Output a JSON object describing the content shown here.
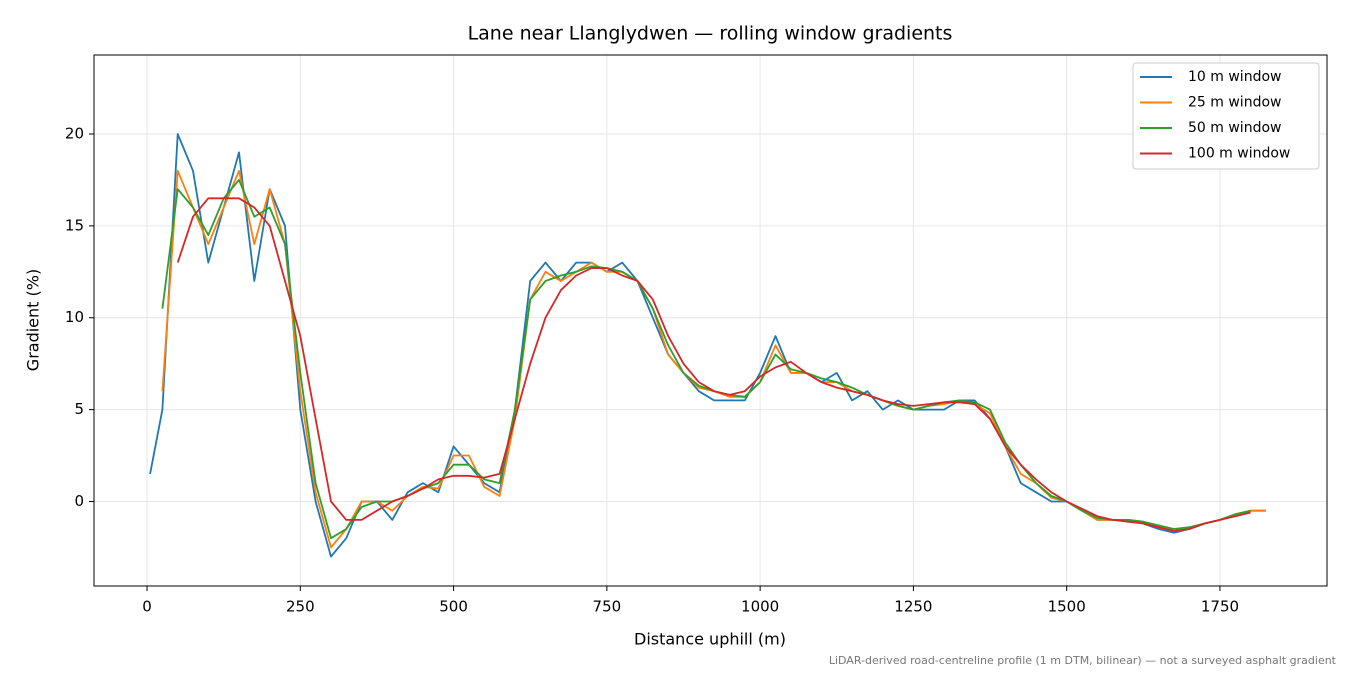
{
  "chart_data": {
    "type": "line",
    "title": "Lane near Llanglydwen — rolling window gradients",
    "x_label": "Distance uphill (m)",
    "y_label": "Gradient (%)",
    "footnote": "LiDAR-derived road-centreline profile (1 m DTM, bilinear) — not a surveyed asphalt gradient",
    "x": [
      5,
      25,
      50,
      75,
      100,
      125,
      150,
      175,
      200,
      225,
      250,
      275,
      300,
      325,
      350,
      375,
      400,
      425,
      450,
      475,
      500,
      525,
      550,
      575,
      600,
      625,
      650,
      675,
      700,
      725,
      750,
      775,
      800,
      825,
      850,
      875,
      900,
      925,
      950,
      975,
      1000,
      1025,
      1050,
      1075,
      1100,
      1125,
      1150,
      1175,
      1200,
      1225,
      1250,
      1275,
      1300,
      1325,
      1350,
      1375,
      1400,
      1425,
      1450,
      1475,
      1500,
      1525,
      1550,
      1575,
      1600,
      1625,
      1650,
      1675,
      1700,
      1725,
      1750,
      1775,
      1800,
      1825
    ],
    "series": [
      {
        "name": "10 m window",
        "color": "#1f77b4",
        "values": [
          1.5,
          5,
          20,
          18,
          13,
          16,
          19,
          12,
          17,
          15,
          5,
          0,
          -3,
          -2,
          0,
          0,
          -1,
          0.5,
          1,
          0.5,
          3,
          2,
          1,
          0.5,
          5,
          12,
          13,
          12,
          13,
          13,
          12.5,
          13,
          12,
          10,
          8,
          7,
          6,
          5.5,
          5.5,
          5.5,
          7,
          9,
          7,
          7,
          6.5,
          7,
          5.5,
          6,
          5,
          5.5,
          5,
          5,
          5,
          5.5,
          5.5,
          4.5,
          3,
          1,
          0.5,
          0,
          0,
          -0.5,
          -1,
          -1,
          -1,
          -1.2,
          -1.5,
          -1.7,
          -1.5,
          -1.2,
          -1,
          -0.7,
          -0.5,
          -0.5
        ]
      },
      {
        "name": "25 m window",
        "color": "#ff7f0e",
        "values": [
          null,
          6,
          18,
          16,
          14,
          16,
          18,
          14,
          17,
          14,
          6,
          0.5,
          -2.5,
          -1.5,
          0,
          0,
          -0.5,
          0.3,
          0.8,
          0.7,
          2.5,
          2.5,
          0.8,
          0.3,
          4.5,
          11,
          12.5,
          12,
          12.5,
          13,
          12.5,
          12.5,
          12,
          10.5,
          8,
          7,
          6.2,
          6,
          5.7,
          5.7,
          6.5,
          8.5,
          7,
          7,
          6.5,
          6.5,
          6,
          5.8,
          5.5,
          5.2,
          5,
          5.2,
          5.3,
          5.5,
          5.3,
          4.8,
          3,
          1.5,
          1,
          0.2,
          0,
          -0.5,
          -1,
          -1,
          -1,
          -1.1,
          -1.4,
          -1.6,
          -1.5,
          -1.2,
          -1,
          -0.7,
          -0.5,
          -0.5
        ]
      },
      {
        "name": "50 m window",
        "color": "#2ca02c",
        "values": [
          null,
          10.5,
          17,
          16,
          14.5,
          16.5,
          17.5,
          15.5,
          16,
          14,
          7,
          1,
          -2,
          -1.5,
          -0.3,
          0,
          0,
          0.3,
          0.7,
          1,
          2,
          2,
          1.2,
          1,
          5,
          11,
          12,
          12.3,
          12.5,
          12.8,
          12.7,
          12.5,
          12,
          10.5,
          8.5,
          7,
          6.3,
          6,
          5.8,
          5.7,
          6.5,
          8,
          7.2,
          7,
          6.7,
          6.5,
          6.2,
          5.8,
          5.5,
          5.2,
          5,
          5.2,
          5.4,
          5.5,
          5.4,
          5,
          3.2,
          2,
          1,
          0.3,
          0,
          -0.5,
          -0.9,
          -1,
          -1,
          -1.1,
          -1.3,
          -1.5,
          -1.4,
          -1.2,
          -1,
          -0.7,
          -0.5,
          null
        ]
      },
      {
        "name": "100 m window",
        "color": "#d62728",
        "values": [
          null,
          null,
          13,
          15.5,
          16.5,
          16.5,
          16.5,
          16,
          15,
          12,
          9,
          4.5,
          0,
          -1,
          -1,
          -0.5,
          0,
          0.3,
          0.7,
          1.2,
          1.4,
          1.4,
          1.3,
          1.5,
          4.5,
          7.5,
          10,
          11.5,
          12.3,
          12.7,
          12.7,
          12.3,
          12,
          11,
          9,
          7.5,
          6.5,
          6,
          5.8,
          6,
          6.8,
          7.3,
          7.6,
          7,
          6.5,
          6.2,
          6,
          5.8,
          5.5,
          5.3,
          5.2,
          5.3,
          5.4,
          5.4,
          5.3,
          4.5,
          3,
          2,
          1.2,
          0.5,
          0,
          -0.4,
          -0.8,
          -1,
          -1.1,
          -1.2,
          -1.4,
          -1.6,
          -1.5,
          -1.2,
          -1,
          -0.8,
          -0.6,
          null
        ]
      }
    ],
    "xlim": [
      -86.5,
      1924.6
    ],
    "ylim": [
      -4.6,
      24.3
    ],
    "xticks": [
      0,
      250,
      500,
      750,
      1000,
      1250,
      1500,
      1750
    ],
    "yticks": [
      0,
      5,
      10,
      15,
      20
    ],
    "grid": true,
    "legend": "upper right"
  }
}
